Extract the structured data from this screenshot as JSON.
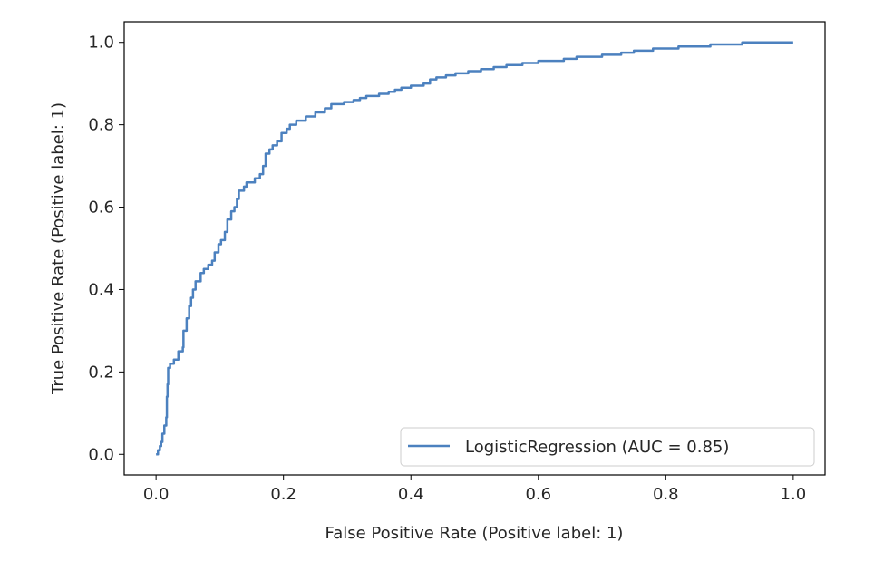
{
  "chart_data": {
    "type": "line",
    "title": "",
    "xlabel": "False Positive Rate (Positive label: 1)",
    "ylabel": "True Positive Rate (Positive label: 1)",
    "xlim": [
      -0.05,
      1.05
    ],
    "ylim": [
      -0.05,
      1.05
    ],
    "xticks": [
      0.0,
      0.2,
      0.4,
      0.6,
      0.8,
      1.0
    ],
    "xtick_labels": [
      "0.0",
      "0.2",
      "0.4",
      "0.6",
      "0.8",
      "1.0"
    ],
    "yticks": [
      0.0,
      0.2,
      0.4,
      0.6,
      0.8,
      1.0
    ],
    "ytick_labels": [
      "0.0",
      "0.2",
      "0.4",
      "0.6",
      "0.8",
      "1.0"
    ],
    "grid": false,
    "legend_position": "bottom-right",
    "series": [
      {
        "name": "LogisticRegression (AUC = 0.85)",
        "color": "#4c81bf",
        "points": [
          [
            0.0,
            0.0
          ],
          [
            0.003,
            0.01
          ],
          [
            0.006,
            0.02
          ],
          [
            0.008,
            0.03
          ],
          [
            0.01,
            0.05
          ],
          [
            0.013,
            0.07
          ],
          [
            0.016,
            0.09
          ],
          [
            0.017,
            0.14
          ],
          [
            0.018,
            0.17
          ],
          [
            0.019,
            0.21
          ],
          [
            0.022,
            0.22
          ],
          [
            0.028,
            0.23
          ],
          [
            0.035,
            0.25
          ],
          [
            0.042,
            0.26
          ],
          [
            0.043,
            0.3
          ],
          [
            0.048,
            0.33
          ],
          [
            0.052,
            0.36
          ],
          [
            0.055,
            0.38
          ],
          [
            0.058,
            0.4
          ],
          [
            0.062,
            0.42
          ],
          [
            0.07,
            0.44
          ],
          [
            0.075,
            0.45
          ],
          [
            0.082,
            0.46
          ],
          [
            0.088,
            0.47
          ],
          [
            0.092,
            0.49
          ],
          [
            0.098,
            0.51
          ],
          [
            0.102,
            0.52
          ],
          [
            0.108,
            0.54
          ],
          [
            0.112,
            0.57
          ],
          [
            0.118,
            0.59
          ],
          [
            0.123,
            0.6
          ],
          [
            0.127,
            0.62
          ],
          [
            0.13,
            0.64
          ],
          [
            0.138,
            0.65
          ],
          [
            0.142,
            0.66
          ],
          [
            0.155,
            0.67
          ],
          [
            0.163,
            0.68
          ],
          [
            0.168,
            0.7
          ],
          [
            0.172,
            0.73
          ],
          [
            0.178,
            0.74
          ],
          [
            0.183,
            0.75
          ],
          [
            0.19,
            0.76
          ],
          [
            0.197,
            0.78
          ],
          [
            0.205,
            0.79
          ],
          [
            0.21,
            0.8
          ],
          [
            0.22,
            0.81
          ],
          [
            0.235,
            0.82
          ],
          [
            0.25,
            0.83
          ],
          [
            0.265,
            0.84
          ],
          [
            0.275,
            0.85
          ],
          [
            0.295,
            0.855
          ],
          [
            0.31,
            0.86
          ],
          [
            0.32,
            0.865
          ],
          [
            0.33,
            0.87
          ],
          [
            0.35,
            0.875
          ],
          [
            0.365,
            0.88
          ],
          [
            0.375,
            0.885
          ],
          [
            0.385,
            0.89
          ],
          [
            0.4,
            0.895
          ],
          [
            0.42,
            0.9
          ],
          [
            0.43,
            0.91
          ],
          [
            0.44,
            0.915
          ],
          [
            0.455,
            0.92
          ],
          [
            0.47,
            0.925
          ],
          [
            0.49,
            0.93
          ],
          [
            0.51,
            0.935
          ],
          [
            0.53,
            0.94
          ],
          [
            0.55,
            0.945
          ],
          [
            0.575,
            0.95
          ],
          [
            0.6,
            0.955
          ],
          [
            0.64,
            0.96
          ],
          [
            0.66,
            0.965
          ],
          [
            0.7,
            0.97
          ],
          [
            0.73,
            0.975
          ],
          [
            0.75,
            0.98
          ],
          [
            0.78,
            0.985
          ],
          [
            0.82,
            0.99
          ],
          [
            0.87,
            0.995
          ],
          [
            0.92,
            1.0
          ],
          [
            1.0,
            1.0
          ]
        ]
      }
    ]
  }
}
